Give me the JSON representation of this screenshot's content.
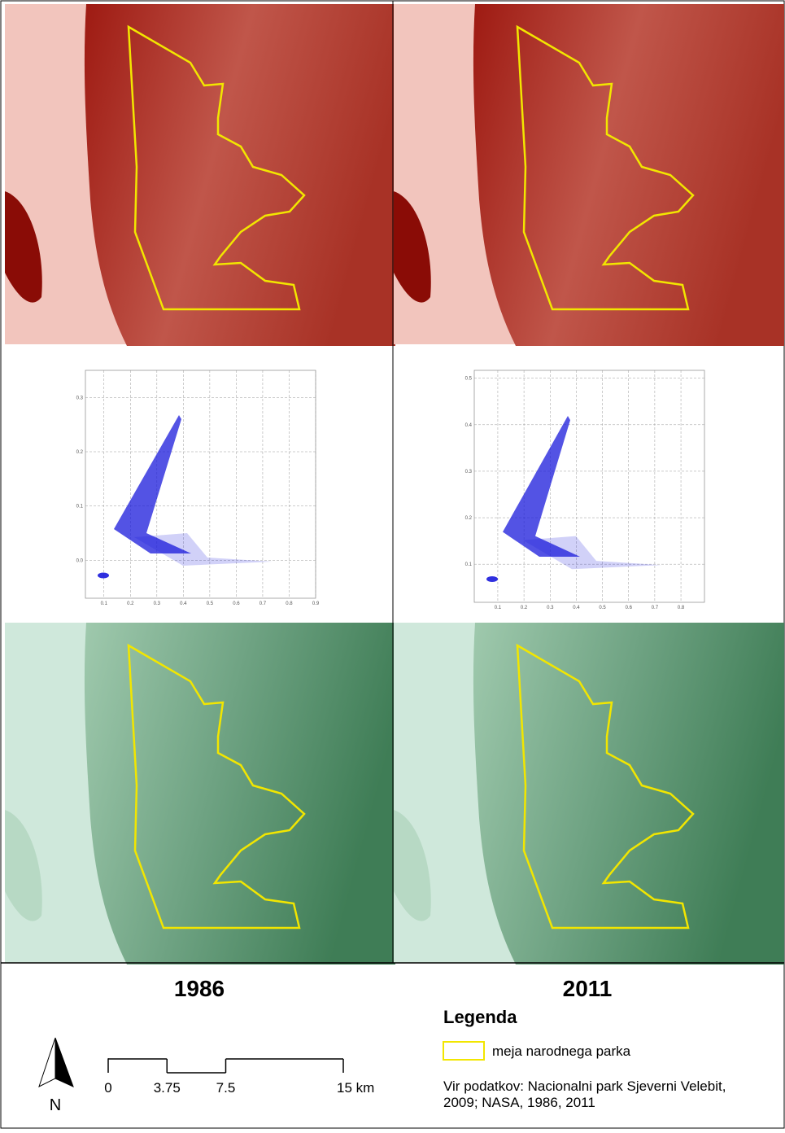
{
  "panels": [
    {
      "year": "1986",
      "scatter": {
        "type": "scatter",
        "xlim": [
          0.03,
          0.9
        ],
        "ylim": [
          -0.07,
          0.35
        ],
        "xticks": [
          0.1,
          0.2,
          0.3,
          0.4,
          0.5,
          0.6,
          0.7,
          0.8,
          0.9
        ],
        "yticks": [
          {
            "value": 0,
            "label": "0.0"
          },
          0.1,
          0.2,
          0.3
        ],
        "color": "#1a1adb"
      }
    },
    {
      "year": "2011",
      "scatter": {
        "type": "scatter",
        "xlim": [
          0.01,
          0.89
        ],
        "ylim": [
          0.018,
          0.517
        ],
        "xticks": [
          0.1,
          0.2,
          0.3,
          0.4,
          0.5,
          0.6,
          0.7,
          0.8
        ],
        "yticks": [
          0.1,
          0.2,
          0.3,
          0.4,
          0.5
        ],
        "color": "#1a1adb"
      }
    }
  ],
  "legend": {
    "title": "Legenda",
    "items": [
      {
        "label": "meja narodnega parka",
        "color": "#f2e600"
      }
    ]
  },
  "north_arrow": "N",
  "scale_bar": {
    "max": 15,
    "ticks": [
      {
        "value": 0,
        "label": "0"
      },
      {
        "value": 3.75,
        "label": "3.75"
      },
      {
        "value": 7.5,
        "label": "7.5"
      },
      {
        "value": 15,
        "label": "15 km"
      }
    ]
  },
  "source": [
    "Vir podatkov: Nacionalni park Sjeverni Velebit,",
    "2009; NASA, 1986, 2011"
  ]
}
